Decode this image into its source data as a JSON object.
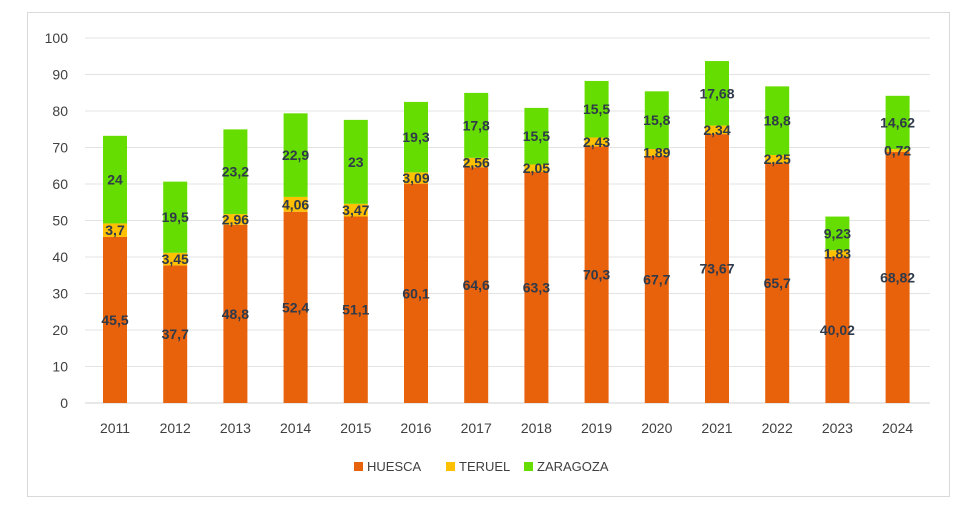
{
  "chart_data": {
    "type": "bar",
    "stacked": true,
    "categories": [
      "2011",
      "2012",
      "2013",
      "2014",
      "2015",
      "2016",
      "2017",
      "2018",
      "2019",
      "2020",
      "2021",
      "2022",
      "2023",
      "2024"
    ],
    "series": [
      {
        "name": "HUESCA",
        "color": "#e8620c",
        "values": [
          45.5,
          37.7,
          48.8,
          52.4,
          51.1,
          60.1,
          64.6,
          63.3,
          70.3,
          67.7,
          73.67,
          65.7,
          40.02,
          68.82
        ]
      },
      {
        "name": "TERUEL",
        "color": "#ffc000",
        "values": [
          3.7,
          3.45,
          2.96,
          4.06,
          3.47,
          3.09,
          2.56,
          2.05,
          2.43,
          1.89,
          2.34,
          2.25,
          1.83,
          0.72
        ]
      },
      {
        "name": "ZARAGOZA",
        "color": "#66dd00",
        "values": [
          24,
          19.5,
          23.2,
          22.9,
          23,
          19.3,
          17.8,
          15.5,
          15.5,
          15.8,
          17.68,
          18.8,
          9.23,
          14.62
        ]
      }
    ],
    "ylim": [
      0,
      100
    ],
    "yticks": [
      0,
      10,
      20,
      30,
      40,
      50,
      60,
      70,
      80,
      90,
      100
    ],
    "grid": true,
    "legend": "bottom",
    "decimal_separator": ","
  }
}
